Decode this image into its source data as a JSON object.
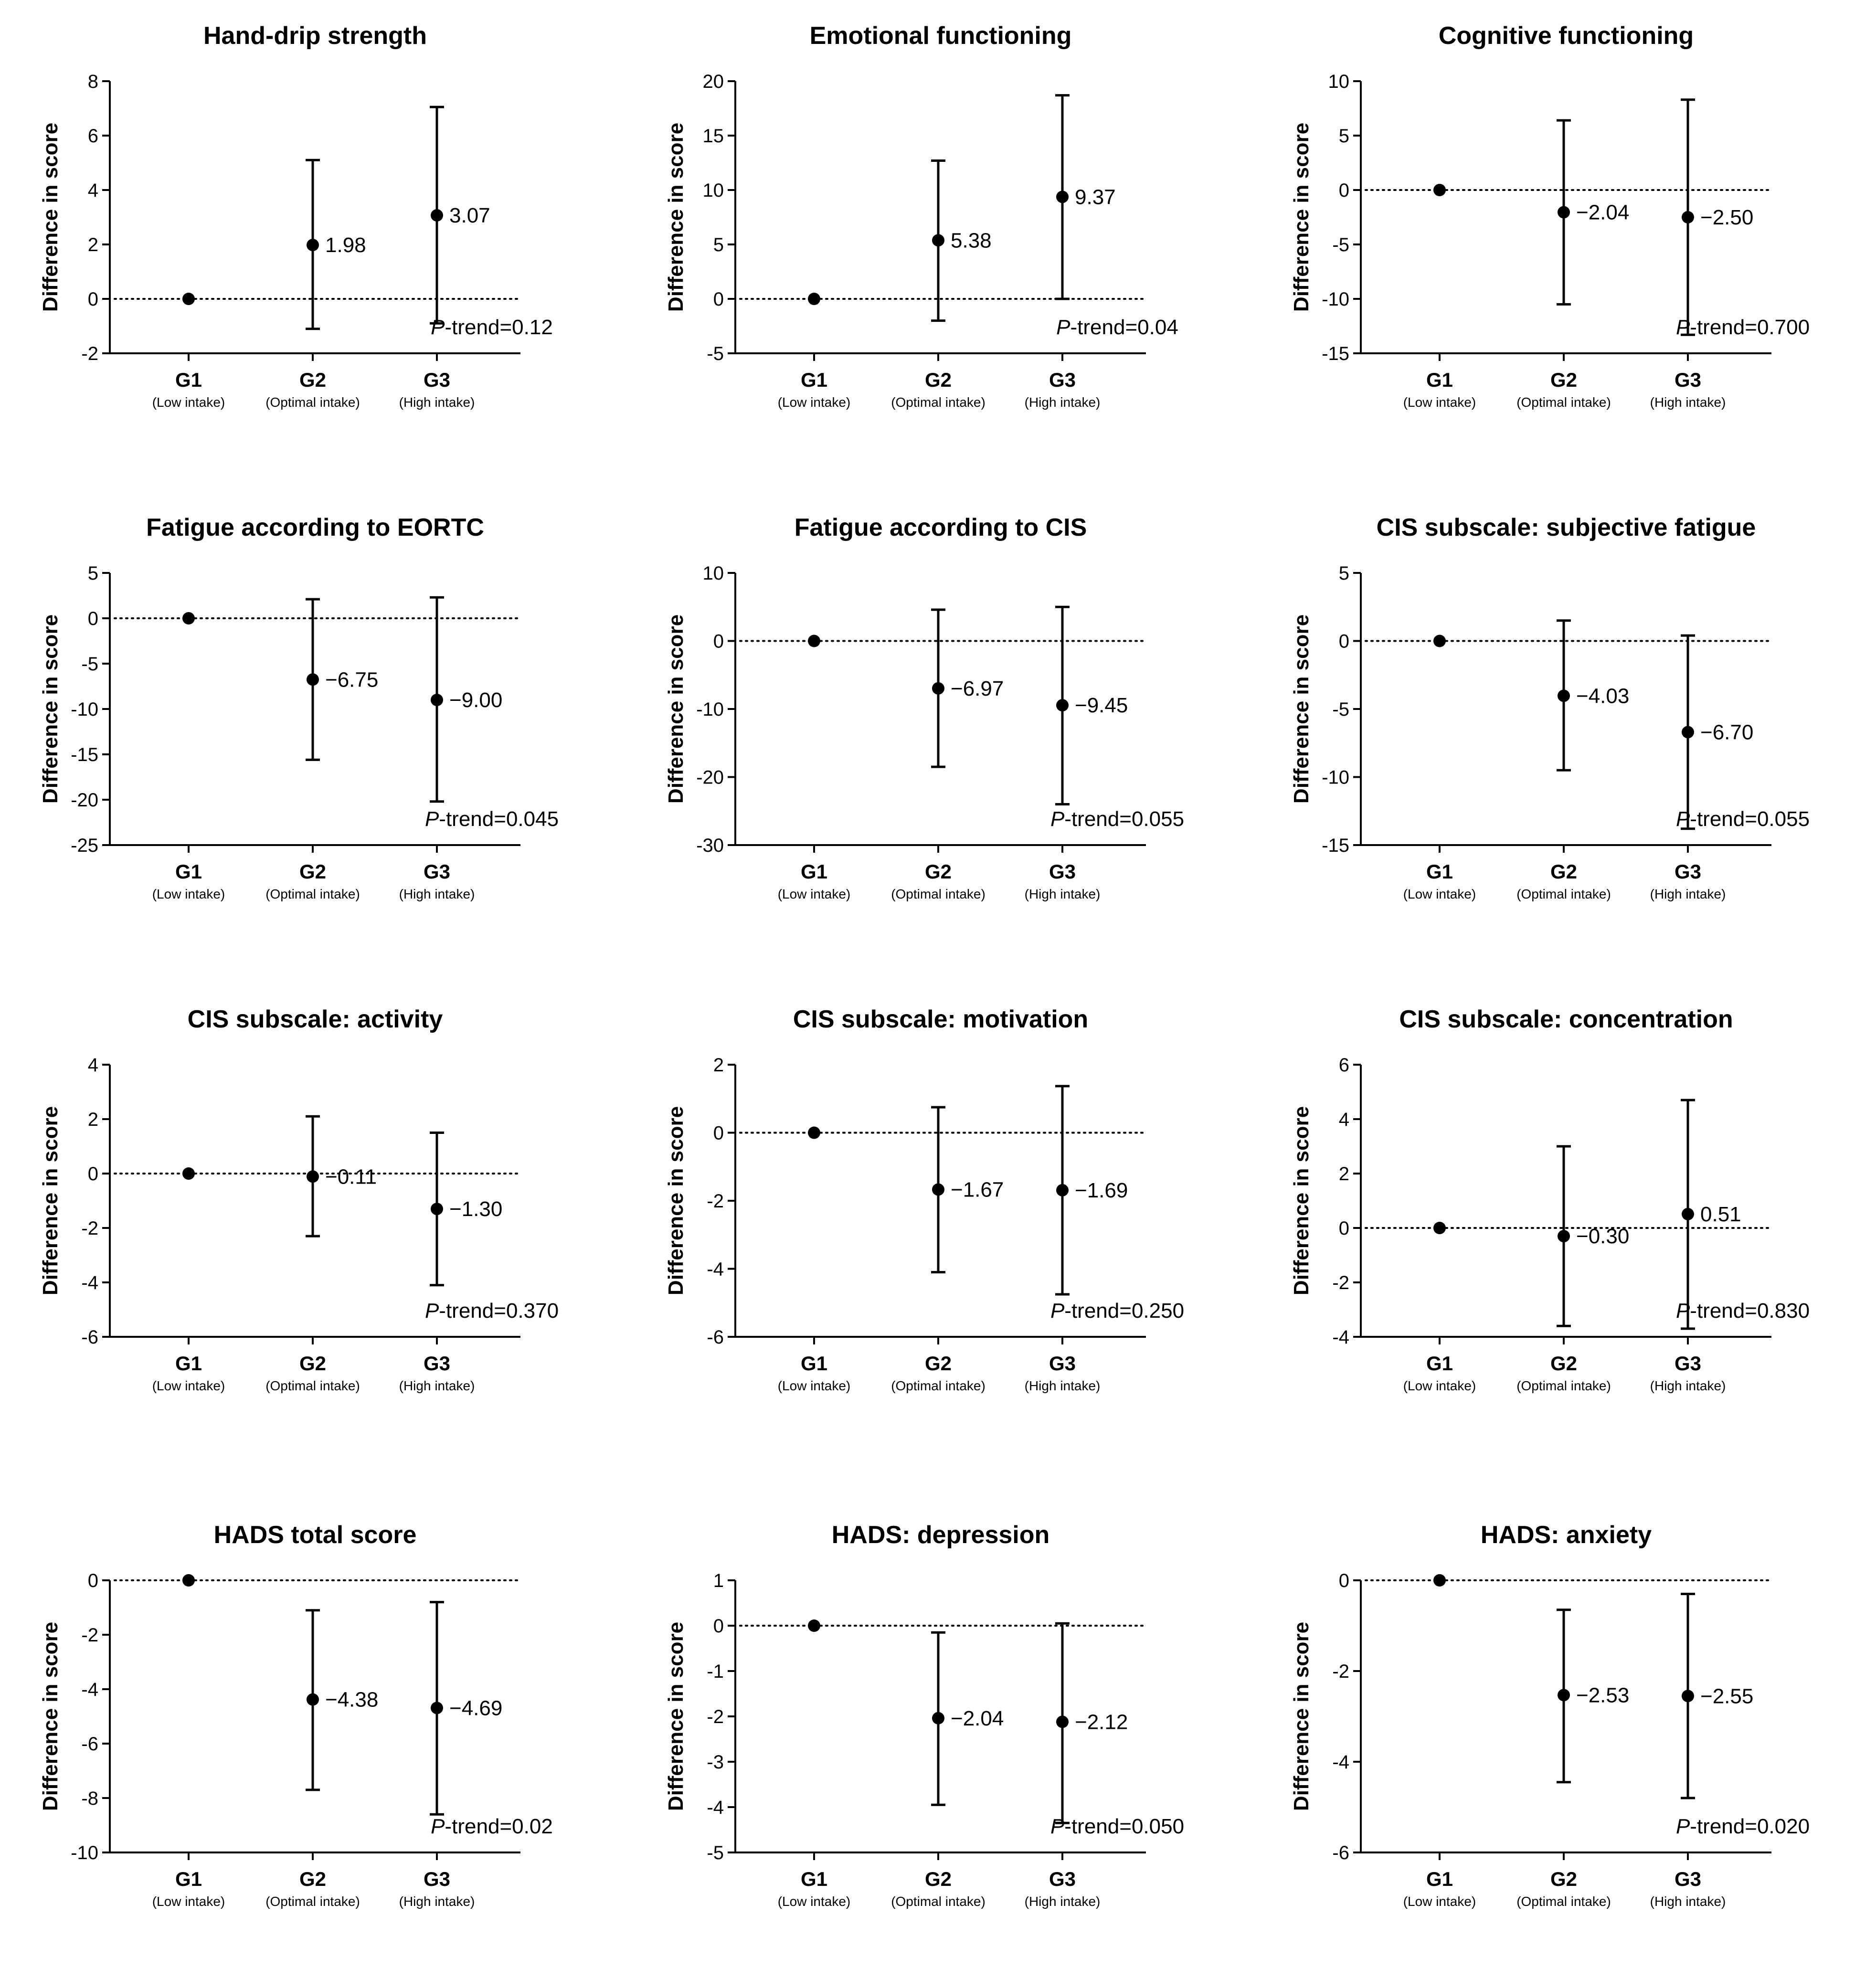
{
  "groups": [
    {
      "label": "G1",
      "sub": "(Low intake)"
    },
    {
      "label": "G2",
      "sub": "(Optimal intake)"
    },
    {
      "label": "G3",
      "sub": "(High intake)"
    }
  ],
  "ylabel": "Difference in score",
  "ptrend_prefix": "P",
  "ptrend_suffix": "-trend=",
  "chart_data": [
    {
      "type": "errorbar",
      "title": "Hand-drip strength",
      "ylim": [
        -2,
        8
      ],
      "ticks": [
        -2,
        0,
        2,
        4,
        6,
        8
      ],
      "points": [
        {
          "group": "G1",
          "y": 0
        },
        {
          "group": "G2",
          "y": 1.98,
          "lo": -1.1,
          "hi": 5.1,
          "label": "1.98"
        },
        {
          "group": "G3",
          "y": 3.07,
          "lo": -0.9,
          "hi": 7.05,
          "label": "3.07"
        }
      ],
      "ptrend": "0.12"
    },
    {
      "type": "errorbar",
      "title": "Emotional functioning",
      "ylim": [
        -5,
        20
      ],
      "ticks": [
        -5,
        0,
        5,
        10,
        15,
        20
      ],
      "points": [
        {
          "group": "G1",
          "y": 0
        },
        {
          "group": "G2",
          "y": 5.38,
          "lo": -2,
          "hi": 12.7,
          "label": "5.38"
        },
        {
          "group": "G3",
          "y": 9.37,
          "lo": 0,
          "hi": 18.7,
          "label": "9.37"
        }
      ],
      "ptrend": "0.04"
    },
    {
      "type": "errorbar",
      "title": "Cognitive functioning",
      "ylim": [
        -15,
        10
      ],
      "ticks": [
        -15,
        -10,
        -5,
        0,
        5,
        10
      ],
      "points": [
        {
          "group": "G1",
          "y": 0
        },
        {
          "group": "G2",
          "y": -2.04,
          "lo": -10.5,
          "hi": 6.4,
          "label": "−2.04"
        },
        {
          "group": "G3",
          "y": -2.5,
          "lo": -13.3,
          "hi": 8.3,
          "label": "−2.50"
        }
      ],
      "ptrend": "0.700"
    },
    {
      "type": "errorbar",
      "title": "Fatigue according to EORTC",
      "ylim": [
        -25,
        5
      ],
      "ticks": [
        -25,
        -20,
        -15,
        -10,
        -5,
        0,
        5
      ],
      "points": [
        {
          "group": "G1",
          "y": 0
        },
        {
          "group": "G2",
          "y": -6.75,
          "lo": -15.6,
          "hi": 2.1,
          "label": "−6.75"
        },
        {
          "group": "G3",
          "y": -9.0,
          "lo": -20.2,
          "hi": 2.3,
          "label": "−9.00"
        }
      ],
      "ptrend": "0.045"
    },
    {
      "type": "errorbar",
      "title": "Fatigue according to CIS",
      "ylim": [
        -30,
        10
      ],
      "ticks": [
        -30,
        -20,
        -10,
        0,
        10
      ],
      "points": [
        {
          "group": "G1",
          "y": 0
        },
        {
          "group": "G2",
          "y": -6.97,
          "lo": -18.5,
          "hi": 4.6,
          "label": "−6.97"
        },
        {
          "group": "G3",
          "y": -9.45,
          "lo": -24,
          "hi": 5,
          "label": "−9.45"
        }
      ],
      "ptrend": "0.055"
    },
    {
      "type": "errorbar",
      "title": "CIS subscale: subjective fatigue",
      "ylim": [
        -15,
        5
      ],
      "ticks": [
        -15,
        -10,
        -5,
        0,
        5
      ],
      "points": [
        {
          "group": "G1",
          "y": 0
        },
        {
          "group": "G2",
          "y": -4.03,
          "lo": -9.5,
          "hi": 1.5,
          "label": "−4.03"
        },
        {
          "group": "G3",
          "y": -6.7,
          "lo": -13.8,
          "hi": 0.4,
          "label": "−6.70"
        }
      ],
      "ptrend": "0.055"
    },
    {
      "type": "errorbar",
      "title": "CIS subscale: activity",
      "ylim": [
        -6,
        4
      ],
      "ticks": [
        -6,
        -4,
        -2,
        0,
        2,
        4
      ],
      "points": [
        {
          "group": "G1",
          "y": 0
        },
        {
          "group": "G2",
          "y": -0.11,
          "lo": -2.3,
          "hi": 2.1,
          "label": "−0.11"
        },
        {
          "group": "G3",
          "y": -1.3,
          "lo": -4.1,
          "hi": 1.5,
          "label": "−1.30"
        }
      ],
      "ptrend": "0.370"
    },
    {
      "type": "errorbar",
      "title": "CIS subscale: motivation",
      "ylim": [
        -6,
        2
      ],
      "ticks": [
        -6,
        -4,
        -2,
        0,
        2
      ],
      "points": [
        {
          "group": "G1",
          "y": 0
        },
        {
          "group": "G2",
          "y": -1.67,
          "lo": -4.1,
          "hi": 0.75,
          "label": "−1.67"
        },
        {
          "group": "G3",
          "y": -1.69,
          "lo": -4.75,
          "hi": 1.37,
          "label": "−1.69"
        }
      ],
      "ptrend": "0.250"
    },
    {
      "type": "errorbar",
      "title": "CIS subscale: concentration",
      "ylim": [
        -4,
        6
      ],
      "ticks": [
        -4,
        -2,
        0,
        2,
        4,
        6
      ],
      "points": [
        {
          "group": "G1",
          "y": 0
        },
        {
          "group": "G2",
          "y": -0.3,
          "lo": -3.6,
          "hi": 3.0,
          "label": "−0.30"
        },
        {
          "group": "G3",
          "y": 0.51,
          "lo": -3.7,
          "hi": 4.7,
          "label": "0.51"
        }
      ],
      "ptrend": "0.830"
    },
    {
      "type": "errorbar",
      "title": "HADS total score",
      "ylim": [
        -10,
        0
      ],
      "ticks": [
        -10,
        -8,
        -6,
        -4,
        -2,
        0
      ],
      "points": [
        {
          "group": "G1",
          "y": 0
        },
        {
          "group": "G2",
          "y": -4.38,
          "lo": -7.7,
          "hi": -1.1,
          "label": "−4.38"
        },
        {
          "group": "G3",
          "y": -4.69,
          "lo": -8.6,
          "hi": -0.8,
          "label": "−4.69"
        }
      ],
      "ptrend": "0.02"
    },
    {
      "type": "errorbar",
      "title": "HADS: depression",
      "ylim": [
        -5,
        1
      ],
      "ticks": [
        -5,
        -4,
        -3,
        -2,
        -1,
        0,
        1
      ],
      "points": [
        {
          "group": "G1",
          "y": 0
        },
        {
          "group": "G2",
          "y": -2.04,
          "lo": -3.95,
          "hi": -0.15,
          "label": "−2.04"
        },
        {
          "group": "G3",
          "y": -2.12,
          "lo": -4.35,
          "hi": 0.05,
          "label": "−2.12"
        }
      ],
      "ptrend": "0.050"
    },
    {
      "type": "errorbar",
      "title": "HADS: anxiety",
      "ylim": [
        -6,
        0
      ],
      "ticks": [
        -6,
        -4,
        -2,
        0
      ],
      "points": [
        {
          "group": "G1",
          "y": 0
        },
        {
          "group": "G2",
          "y": -2.53,
          "lo": -4.45,
          "hi": -0.65,
          "label": "−2.53"
        },
        {
          "group": "G3",
          "y": -2.55,
          "lo": -4.8,
          "hi": -0.3,
          "label": "−2.55"
        }
      ],
      "ptrend": "0.020"
    }
  ]
}
